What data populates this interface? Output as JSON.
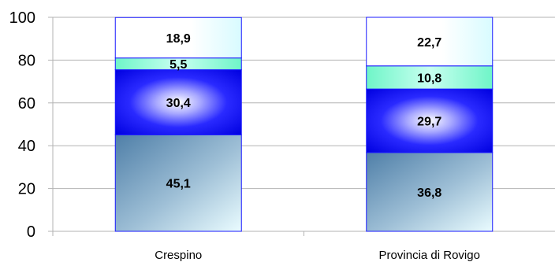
{
  "chart_data": {
    "type": "bar",
    "stacked": true,
    "categories": [
      "Crespino",
      "Provincia di Rovigo"
    ],
    "series": [
      {
        "values": [
          45.1,
          36.8
        ],
        "color": "#5b8db4"
      },
      {
        "values": [
          30.4,
          29.7
        ],
        "color": "#0000ff"
      },
      {
        "values": [
          5.5,
          10.8
        ],
        "color": "#7fffd4"
      },
      {
        "values": [
          18.9,
          22.7
        ],
        "color": "#e0ffff"
      }
    ],
    "data_labels": [
      [
        "45,1",
        "36,8"
      ],
      [
        "30,4",
        "29,7"
      ],
      [
        "5,5",
        "10,8"
      ],
      [
        "18,9",
        "22,7"
      ]
    ],
    "y_ticks": [
      "0",
      "20",
      "40",
      "60",
      "80",
      "100"
    ],
    "ylim": [
      0,
      100
    ],
    "grid": true,
    "legend": "none",
    "title": "",
    "xlabel": "",
    "ylabel": ""
  }
}
